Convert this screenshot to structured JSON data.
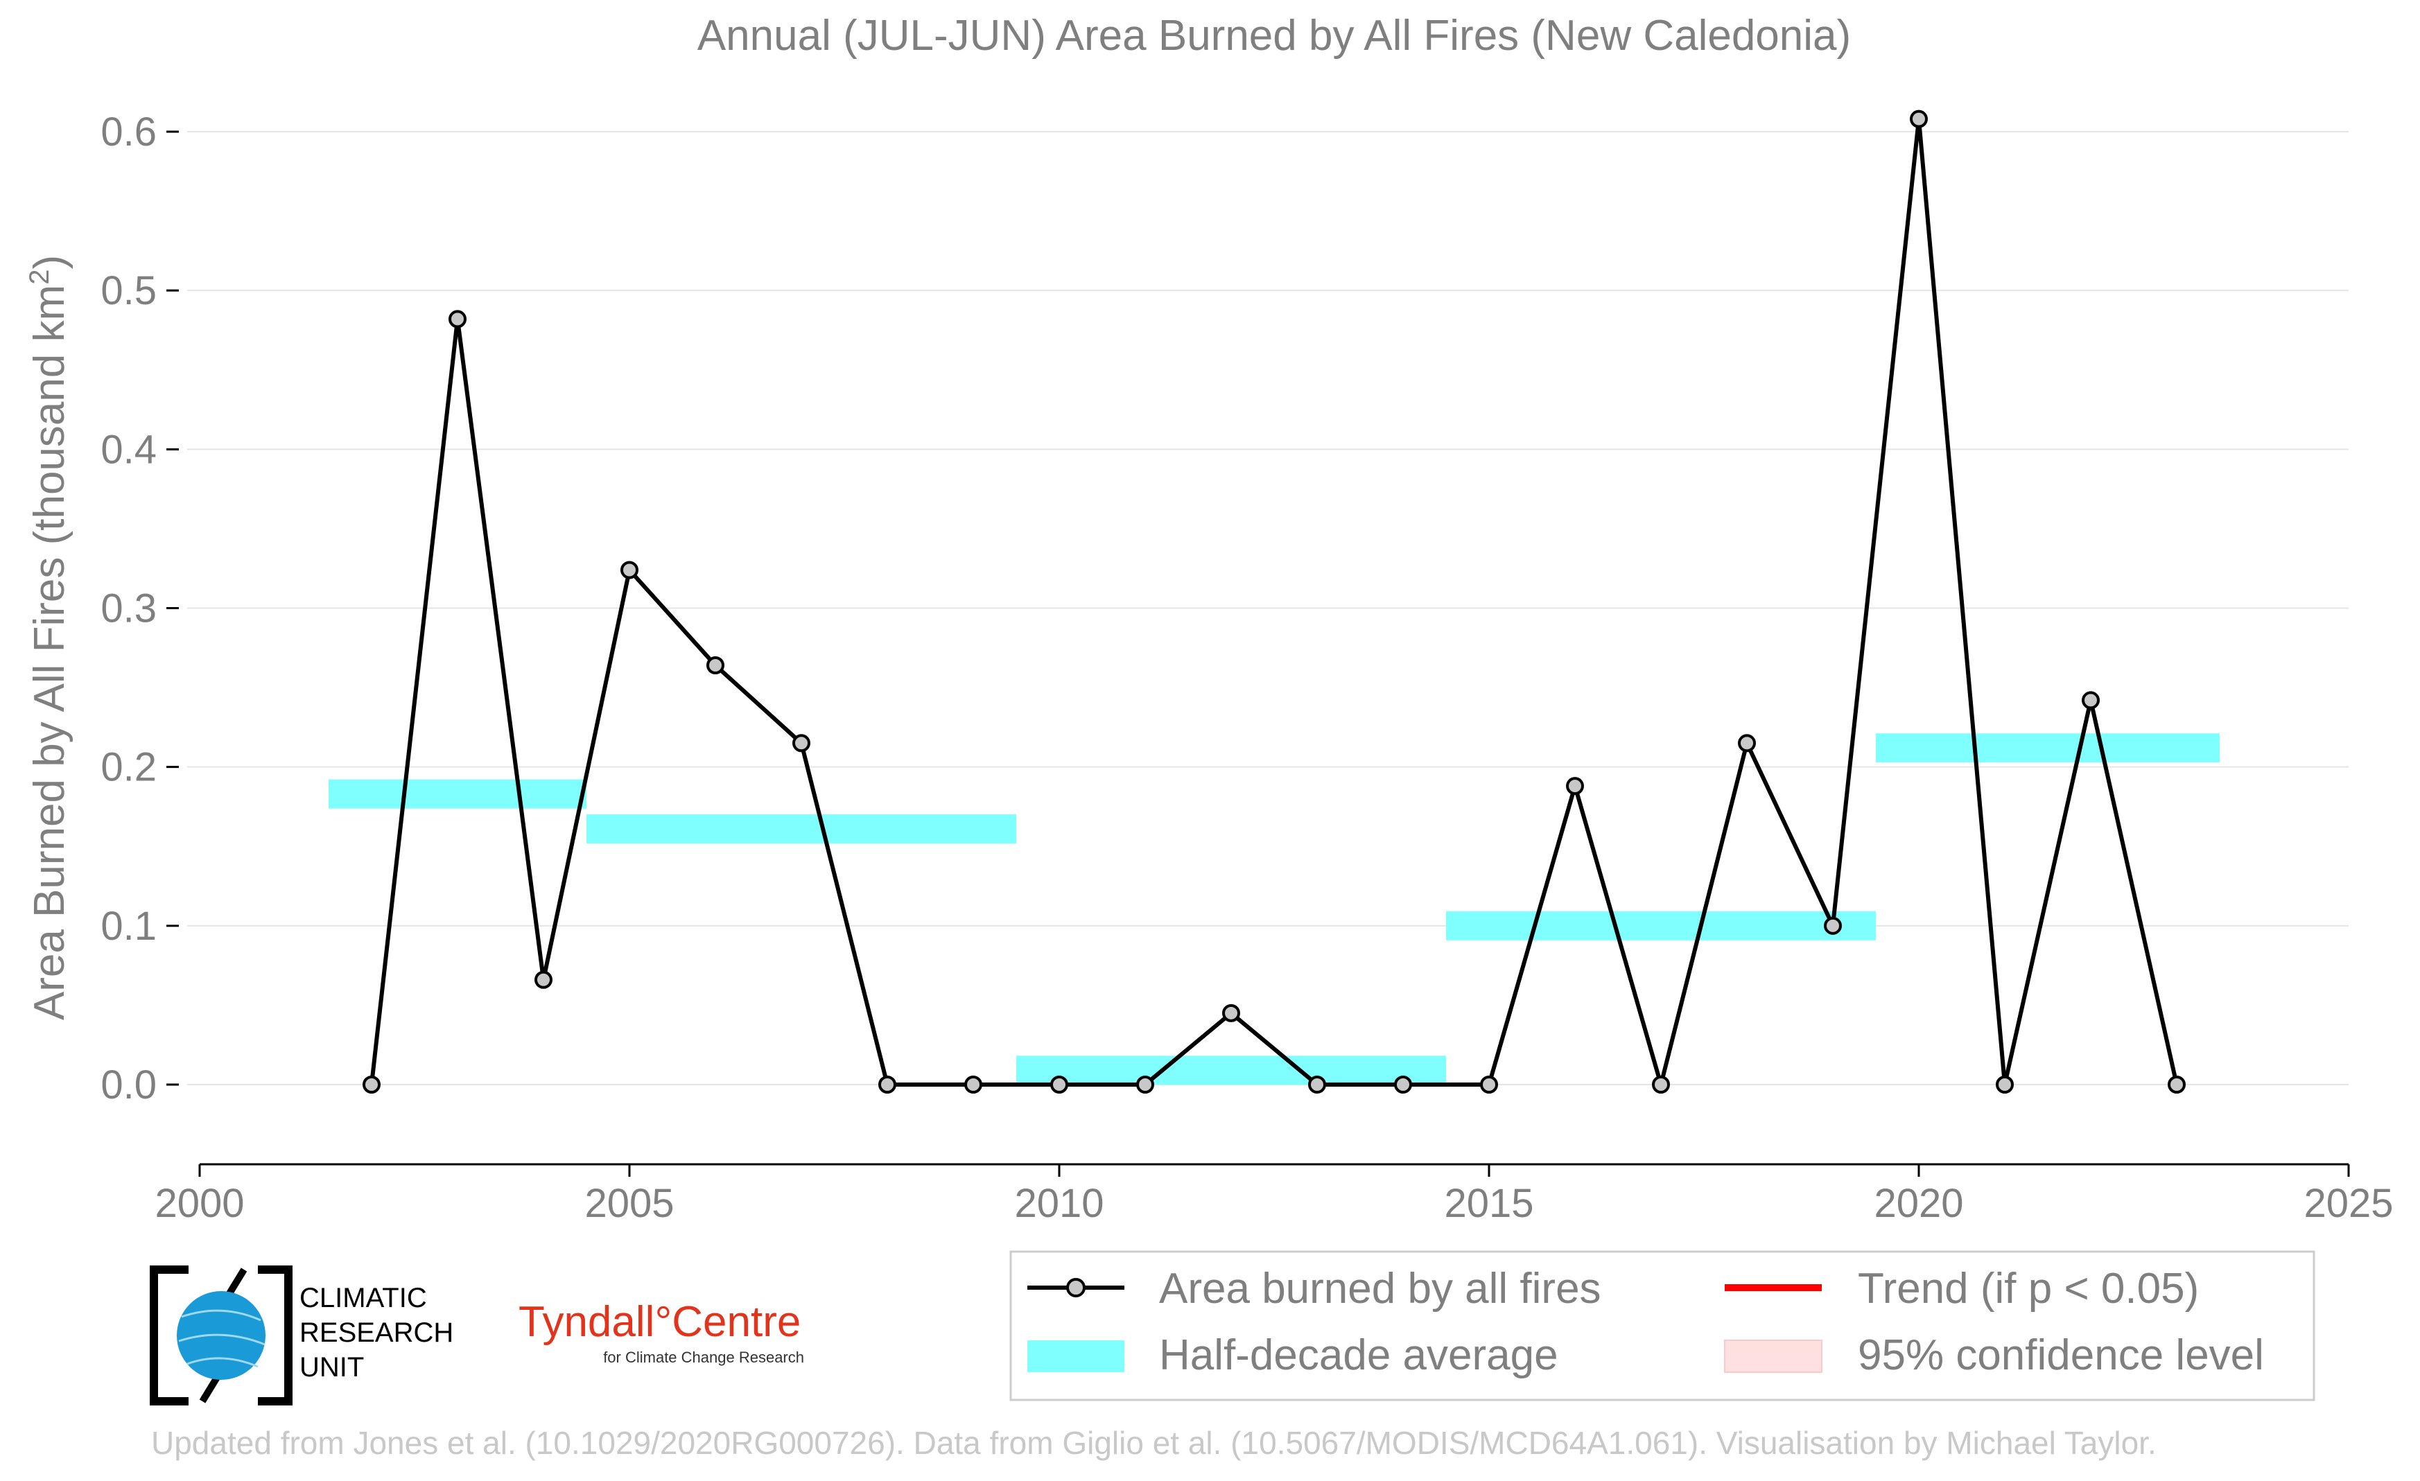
{
  "colors": {
    "line": "#000000",
    "marker_fill": "#c8c8c8",
    "half_decade": "#80ffff",
    "trend": "#ff0000",
    "confidence": "#ffe0e0",
    "grid": "#e5e5e5",
    "text": "#7f7f7f",
    "footer": "#c8c8c8",
    "cru_blue": "#1a9ad6",
    "tyndall_red": "#e2331c"
  },
  "chart_data": {
    "type": "line",
    "title": "Annual (JUL-JUN) Area Burned by All Fires (New Caledonia)",
    "xlabel": "",
    "ylabel_main": "Area Burned by All Fires (thousand km",
    "ylabel_sup": "2",
    "ylabel_end": ")",
    "xlim": [
      2000,
      2025
    ],
    "ylim": [
      -0.05,
      0.62
    ],
    "x_ticks": [
      2000,
      2005,
      2010,
      2015,
      2020,
      2025
    ],
    "x_tick_labels": [
      "2000",
      "2005",
      "2010",
      "2015",
      "2020",
      "2025"
    ],
    "y_ticks": [
      0.0,
      0.1,
      0.2,
      0.3,
      0.4,
      0.5,
      0.6
    ],
    "y_tick_labels": [
      "0.0",
      "0.1",
      "0.2",
      "0.3",
      "0.4",
      "0.5",
      "0.6"
    ],
    "grid": true,
    "series": [
      {
        "name": "Area burned by all fires",
        "x": [
          2002,
          2003,
          2004,
          2005,
          2006,
          2007,
          2008,
          2009,
          2010,
          2011,
          2012,
          2013,
          2014,
          2015,
          2016,
          2017,
          2018,
          2019,
          2020,
          2021,
          2022,
          2023
        ],
        "y": [
          0.0,
          0.482,
          0.066,
          0.324,
          0.264,
          0.215,
          0.0,
          0.0,
          0.0,
          0.0,
          0.045,
          0.0,
          0.0,
          0.0,
          0.188,
          0.0,
          0.215,
          0.1,
          0.608,
          0.0,
          0.242,
          0.0
        ]
      }
    ],
    "half_decade_averages": [
      {
        "x_start": 2001.5,
        "x_end": 2004.5,
        "value": 0.183
      },
      {
        "x_start": 2004.5,
        "x_end": 2009.5,
        "value": 0.161
      },
      {
        "x_start": 2009.5,
        "x_end": 2014.5,
        "value": 0.009
      },
      {
        "x_start": 2014.5,
        "x_end": 2019.5,
        "value": 0.1
      },
      {
        "x_start": 2019.5,
        "x_end": 2023.5,
        "value": 0.212
      }
    ],
    "legend": {
      "placement": "bottom-right",
      "items": [
        {
          "label": "Area burned by all fires",
          "kind": "line-marker"
        },
        {
          "label": "Trend (if p < 0.05)",
          "kind": "line-red"
        },
        {
          "label": "Half-decade average",
          "kind": "band-cyan"
        },
        {
          "label": "95% confidence level",
          "kind": "band-pink"
        }
      ]
    }
  },
  "logos": {
    "cru_lines": [
      "CLIMATIC",
      "RESEARCH",
      "UNIT"
    ],
    "tyndall_name": "Tyndall°Centre",
    "tyndall_sub": "for Climate Change Research"
  },
  "footer": "Updated from Jones et al. (10.1029/2020RG000726). Data from Giglio et al. (10.5067/MODIS/MCD64A1.061). Visualisation by Michael Taylor."
}
